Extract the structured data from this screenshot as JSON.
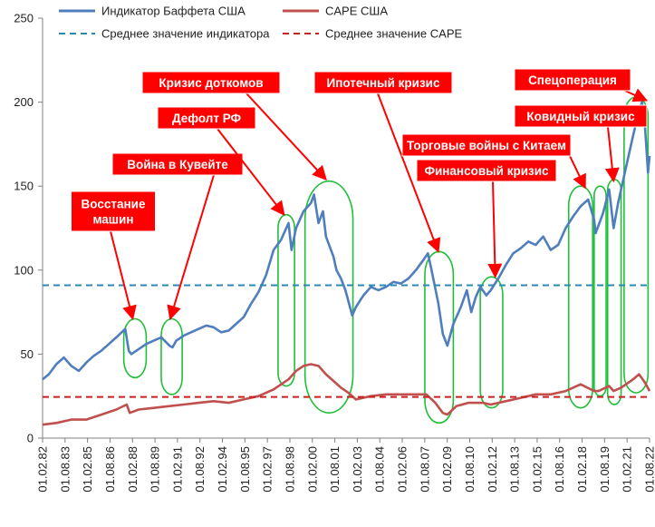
{
  "chart_data": {
    "type": "line",
    "ylim": [
      0,
      250
    ],
    "y_ticks": [
      "0",
      "50",
      "100",
      "150",
      "200",
      "250"
    ],
    "grid": false,
    "x_ticks": [
      "01.02.82",
      "01.08.83",
      "01.02.85",
      "01.08.86",
      "01.02.88",
      "01.08.89",
      "01.02.91",
      "01.08.92",
      "01.02.94",
      "01.08.95",
      "01.02.97",
      "01.08.98",
      "01.02.00",
      "01.08.01",
      "01.02.03",
      "01.08.04",
      "01.02.06",
      "01.08.07",
      "01.02.09",
      "01.08.10",
      "01.02.12",
      "01.08.13",
      "01.02.15",
      "01.08.16",
      "01.02.18",
      "01.08.19",
      "01.02.21",
      "01.08.22"
    ],
    "legend_position": "top",
    "series": [
      {
        "name": "Индикатор Баффета США",
        "color": "#4f7ebd",
        "x": [
          1982.08,
          1982.5,
          1983.0,
          1983.5,
          1984.0,
          1984.5,
          1985.0,
          1985.5,
          1986.0,
          1986.5,
          1987.0,
          1987.6,
          1987.83,
          1988.0,
          1988.5,
          1989.0,
          1989.5,
          1990.0,
          1990.55,
          1990.75,
          1991.0,
          1991.5,
          1992.0,
          1992.5,
          1993.0,
          1993.5,
          1994.0,
          1994.5,
          1995.0,
          1995.5,
          1996.0,
          1996.5,
          1997.0,
          1997.5,
          1998.0,
          1998.5,
          1998.7,
          1999.0,
          1999.5,
          2000.0,
          2000.2,
          2000.5,
          2000.8,
          2001.0,
          2001.5,
          2001.7,
          2002.0,
          2002.3,
          2002.75,
          2003.0,
          2003.5,
          2004.0,
          2004.5,
          2005.0,
          2005.5,
          2006.0,
          2006.5,
          2007.0,
          2007.5,
          2007.8,
          2008.0,
          2008.5,
          2008.8,
          2009.1,
          2009.5,
          2010.0,
          2010.4,
          2010.7,
          2011.0,
          2011.3,
          2011.7,
          2012.0,
          2012.5,
          2013.0,
          2013.5,
          2014.0,
          2014.5,
          2015.0,
          2015.5,
          2016.0,
          2016.5,
          2017.0,
          2017.5,
          2018.0,
          2018.5,
          2018.9,
          2019.0,
          2019.5,
          2019.9,
          2020.2,
          2020.5,
          2021.0,
          2021.5,
          2021.9,
          2022.1,
          2022.3,
          2022.5,
          2022.6
        ],
        "values": [
          35,
          38,
          44,
          48,
          43,
          40,
          45,
          49,
          52,
          56,
          60,
          65,
          52,
          50,
          53,
          56,
          58,
          60,
          55,
          54,
          58,
          61,
          63,
          65,
          67,
          66,
          63,
          64,
          68,
          72,
          80,
          87,
          97,
          112,
          118,
          128,
          112,
          125,
          135,
          140,
          145,
          128,
          135,
          120,
          108,
          100,
          95,
          88,
          73,
          78,
          85,
          90,
          88,
          90,
          93,
          92,
          95,
          100,
          106,
          110,
          102,
          80,
          62,
          55,
          68,
          78,
          88,
          75,
          84,
          90,
          85,
          88,
          95,
          103,
          110,
          113,
          117,
          115,
          120,
          112,
          115,
          125,
          132,
          138,
          142,
          130,
          122,
          134,
          148,
          125,
          140,
          160,
          180,
          195,
          200,
          185,
          158,
          168
        ],
        "markers": false
      },
      {
        "name": "CAPE США",
        "color": "#c0504d",
        "x": [
          1982.08,
          1983.0,
          1984.0,
          1985.0,
          1986.0,
          1987.0,
          1987.7,
          1987.9,
          1988.5,
          1989.5,
          1990.5,
          1991.5,
          1992.5,
          1993.5,
          1994.5,
          1995.5,
          1996.5,
          1997.5,
          1998.5,
          1999.0,
          1999.5,
          2000.0,
          2000.5,
          2001.0,
          2001.5,
          2002.0,
          2002.5,
          2003.0,
          2004.0,
          2005.0,
          2006.0,
          2007.0,
          2007.7,
          2008.3,
          2008.8,
          2009.1,
          2009.7,
          2010.5,
          2011.5,
          2012.0,
          2013.0,
          2014.0,
          2015.0,
          2016.0,
          2017.0,
          2018.0,
          2018.9,
          2019.2,
          2019.9,
          2020.2,
          2020.7,
          2021.5,
          2021.9,
          2022.3,
          2022.6
        ],
        "values": [
          8,
          9,
          11,
          11,
          14,
          17,
          20,
          15,
          17,
          18,
          19,
          20,
          21,
          22,
          21,
          23,
          25,
          29,
          35,
          40,
          43,
          44,
          43,
          38,
          34,
          30,
          27,
          23,
          25,
          26,
          26,
          26,
          26,
          21,
          15,
          14,
          19,
          21,
          21,
          20,
          22,
          24,
          26,
          26,
          28,
          32,
          28,
          28,
          31,
          28,
          30,
          35,
          38,
          33,
          28
        ],
        "markers": false
      },
      {
        "name": "Среднее значение индикатора",
        "color": "#2c8ab0",
        "x": [
          1982.08,
          2022.6
        ],
        "values": [
          91,
          91
        ],
        "markers": false
      },
      {
        "name": "Среднее значение CAPE",
        "color": "#cc2020",
        "x": [
          1982.08,
          2022.6
        ],
        "values": [
          24.5,
          24.5
        ],
        "markers": false
      }
    ],
    "annotations": [
      {
        "text": "Восстание машин",
        "lines": [
          "Восстание",
          "машин"
        ],
        "arrow_to": [
          1988.1,
          71
        ]
      },
      {
        "text": "Война в Кувейте",
        "arrow_to": [
          1990.6,
          71
        ]
      },
      {
        "text": "Дефолт РФ",
        "arrow_to": [
          1998.2,
          133
        ]
      },
      {
        "text": "Кризис доткомов",
        "arrow_to": [
          2001.0,
          154
        ]
      },
      {
        "text": "Ипотечный кризис",
        "arrow_to": [
          2008.5,
          111
        ]
      },
      {
        "text": "Торговые войны с Китаем",
        "arrow_to": [
          2018.3,
          149
        ]
      },
      {
        "text": "Финансовый кризис",
        "arrow_to": [
          2012.3,
          96
        ]
      },
      {
        "text": "Ковидный кризис",
        "arrow_to": [
          2020.2,
          153
        ]
      },
      {
        "text": "Спецоперация",
        "arrow_to": [
          2022.4,
          201
        ]
      }
    ],
    "highlight_ellipses": [
      {
        "x0": 1987.5,
        "x1": 1989.0,
        "y0": 36,
        "y1": 71
      },
      {
        "x0": 1990.0,
        "x1": 1991.4,
        "y0": 26,
        "y1": 71
      },
      {
        "x0": 1997.8,
        "x1": 1998.9,
        "y0": 31,
        "y1": 133
      },
      {
        "x0": 1999.6,
        "x1": 2002.8,
        "y0": 15,
        "y1": 153
      },
      {
        "x0": 2007.6,
        "x1": 2009.5,
        "y0": 9,
        "y1": 111
      },
      {
        "x0": 2011.3,
        "x1": 2012.8,
        "y0": 18,
        "y1": 96
      },
      {
        "x0": 2017.2,
        "x1": 2018.8,
        "y0": 18,
        "y1": 150
      },
      {
        "x0": 2018.9,
        "x1": 2019.7,
        "y0": 25,
        "y1": 150
      },
      {
        "x0": 2019.8,
        "x1": 2020.7,
        "y0": 20,
        "y1": 154
      },
      {
        "x0": 2020.9,
        "x1": 2022.5,
        "y0": 27,
        "y1": 203
      }
    ]
  }
}
